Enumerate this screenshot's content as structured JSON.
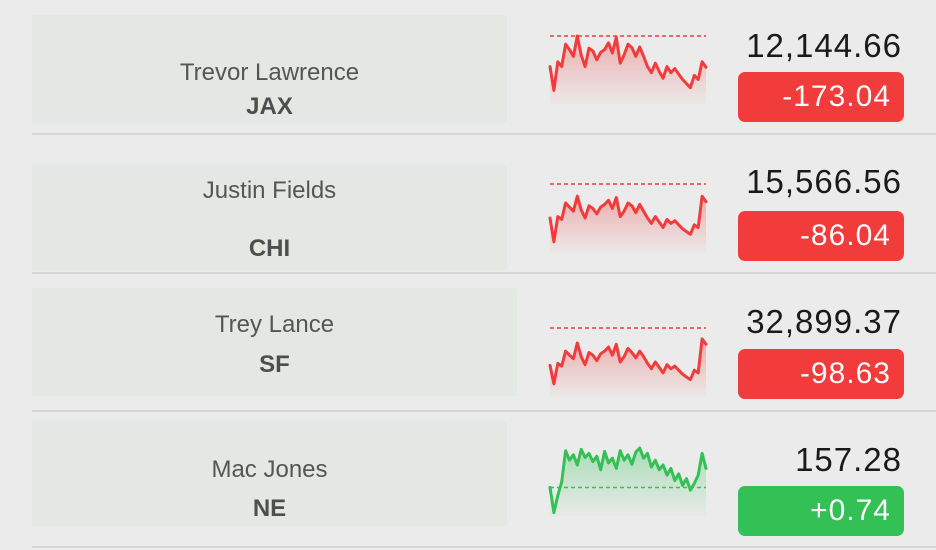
{
  "colors": {
    "down": "#f23b3b",
    "up": "#33c155",
    "card": "#e3e8e5",
    "background": "#ebebeb"
  },
  "stocks": [
    {
      "player": "Trevor Lawrence",
      "team": "JAX",
      "price": "12,144.66",
      "change": "-173.04",
      "direction": "down",
      "series": [
        0.55,
        0.2,
        0.62,
        0.55,
        0.88,
        0.8,
        0.7,
        1.0,
        0.72,
        0.55,
        0.82,
        0.78,
        0.65,
        0.76,
        0.8,
        0.9,
        0.75,
        0.98,
        0.6,
        0.72,
        0.88,
        0.83,
        0.7,
        0.84,
        0.7,
        0.55,
        0.46,
        0.6,
        0.48,
        0.38,
        0.55,
        0.46,
        0.52,
        0.44,
        0.36,
        0.3,
        0.24,
        0.42,
        0.36,
        0.62,
        0.54
      ],
      "reference": 1.0
    },
    {
      "player": "Justin Fields",
      "team": "CHI",
      "price": "15,566.56",
      "change": "-86.04",
      "direction": "down",
      "series": [
        0.5,
        0.15,
        0.52,
        0.48,
        0.72,
        0.66,
        0.6,
        0.82,
        0.62,
        0.5,
        0.68,
        0.64,
        0.56,
        0.66,
        0.7,
        0.76,
        0.64,
        0.8,
        0.52,
        0.6,
        0.72,
        0.68,
        0.58,
        0.7,
        0.6,
        0.5,
        0.42,
        0.52,
        0.44,
        0.36,
        0.48,
        0.42,
        0.46,
        0.4,
        0.34,
        0.3,
        0.26,
        0.4,
        0.36,
        0.82,
        0.74
      ],
      "reference": 1.0
    },
    {
      "player": "Trey Lance",
      "team": "SF",
      "price": "32,899.37",
      "change": "-98.63",
      "direction": "down",
      "series": [
        0.45,
        0.18,
        0.48,
        0.44,
        0.66,
        0.6,
        0.55,
        0.78,
        0.58,
        0.46,
        0.64,
        0.6,
        0.52,
        0.62,
        0.66,
        0.72,
        0.6,
        0.76,
        0.5,
        0.58,
        0.7,
        0.64,
        0.56,
        0.66,
        0.58,
        0.48,
        0.4,
        0.5,
        0.42,
        0.34,
        0.46,
        0.4,
        0.44,
        0.38,
        0.32,
        0.28,
        0.24,
        0.38,
        0.34,
        0.84,
        0.76
      ],
      "reference": 1.0
    },
    {
      "player": "Mac Jones",
      "team": "NE",
      "price": "157.28",
      "change": "+0.74",
      "direction": "up",
      "series": [
        0.42,
        0.05,
        0.3,
        0.5,
        0.96,
        0.82,
        0.9,
        0.75,
        0.98,
        0.86,
        0.92,
        0.8,
        0.88,
        0.68,
        0.95,
        0.78,
        0.85,
        0.7,
        0.96,
        0.82,
        0.9,
        0.76,
        0.94,
        1.0,
        0.85,
        0.92,
        0.72,
        0.82,
        0.68,
        0.75,
        0.6,
        0.7,
        0.52,
        0.62,
        0.45,
        0.55,
        0.38,
        0.48,
        0.6,
        0.92,
        0.7
      ],
      "reference": 0.42
    }
  ]
}
